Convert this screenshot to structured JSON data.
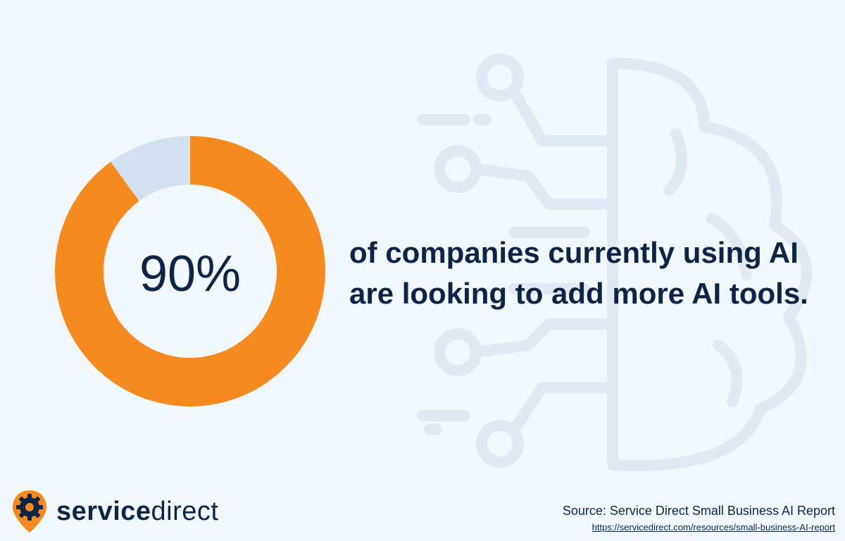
{
  "chart_data": {
    "type": "pie",
    "donut": true,
    "slices": [
      {
        "label": "",
        "value": 90,
        "color": "#f58b20"
      },
      {
        "label": "",
        "value": 10,
        "color": "#d2e0f0"
      }
    ],
    "center_label": "90%",
    "title": ""
  },
  "headline": {
    "line1": "of companies currently using AI",
    "line2": "are looking to add more AI tools."
  },
  "brand": {
    "name_bold": "service",
    "name_regular": "direct",
    "logo_icon": "gear-pin-icon",
    "accent_color": "#f58b20",
    "text_color": "#0c2547"
  },
  "source": {
    "label": "Source: Service Direct Small Business AI Report",
    "url": "https://servicedirect.com/resources/small-business-AI-report"
  }
}
